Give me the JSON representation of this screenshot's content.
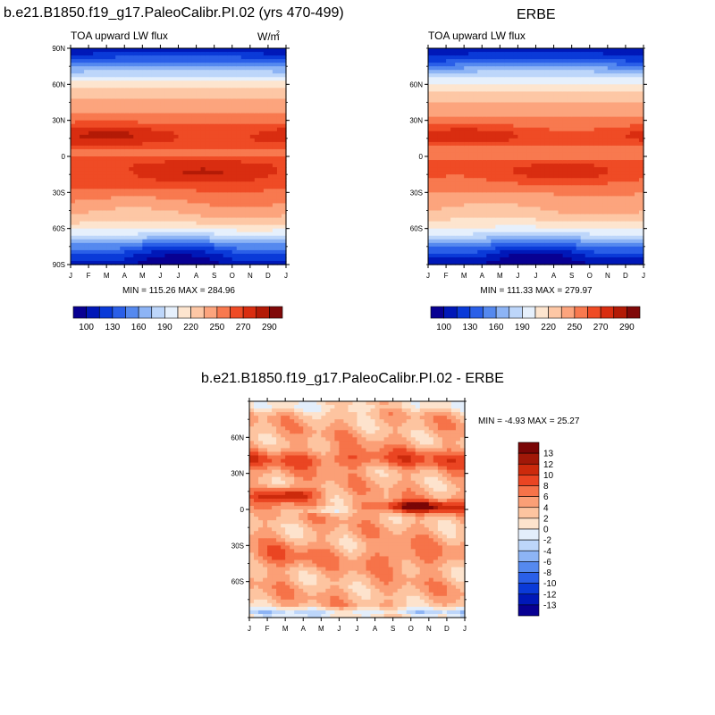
{
  "titles": {
    "model": "b.e21.B1850.f19_g17.PaleoCalibr.PI.02 (yrs 470-499)",
    "obs": "ERBE",
    "diff": "b.e21.B1850.f19_g17.PaleoCalibr.PI.02 - ERBE"
  },
  "chart_data": [
    {
      "id": "model",
      "type": "heatmap",
      "title": "TOA upward LW flux",
      "units": "W/m",
      "units_superscript": "2",
      "x_ticks": [
        "J",
        "F",
        "M",
        "A",
        "M",
        "J",
        "J",
        "A",
        "S",
        "O",
        "N",
        "D",
        "J"
      ],
      "y_ticks": [
        "90N",
        "60N",
        "30N",
        "0",
        "30S",
        "60S",
        "90S"
      ],
      "y_values": [
        90,
        60,
        30,
        0,
        -30,
        -60,
        -90
      ],
      "xlim": [
        1,
        13
      ],
      "ylim": [
        -90,
        90
      ],
      "min": 115.26,
      "max": 284.96,
      "stats_label": "MIN = 115.26 MAX = 284.96",
      "colorbar_labels": [
        "100",
        "130",
        "160",
        "190",
        "220",
        "250",
        "270",
        "290"
      ]
    },
    {
      "id": "obs",
      "type": "heatmap",
      "title": "TOA upward LW flux",
      "x_ticks": [
        "J",
        "F",
        "M",
        "A",
        "M",
        "J",
        "J",
        "A",
        "S",
        "O",
        "N",
        "D",
        "J"
      ],
      "y_ticks": [
        "60N",
        "30N",
        "0",
        "30S",
        "60S"
      ],
      "y_values": [
        60,
        30,
        0,
        -30,
        -60
      ],
      "xlim": [
        1,
        13
      ],
      "ylim": [
        -90,
        90
      ],
      "min": 111.33,
      "max": 279.97,
      "stats_label": "MIN = 111.33 MAX = 279.97",
      "colorbar_labels": [
        "100",
        "130",
        "160",
        "190",
        "220",
        "250",
        "270",
        "290"
      ]
    },
    {
      "id": "diff",
      "type": "heatmap",
      "x_ticks": [
        "J",
        "F",
        "M",
        "A",
        "M",
        "J",
        "J",
        "A",
        "S",
        "O",
        "N",
        "D",
        "J"
      ],
      "y_ticks": [
        "60N",
        "30N",
        "0",
        "30S",
        "60S"
      ],
      "y_values": [
        60,
        30,
        0,
        -30,
        -60
      ],
      "xlim": [
        1,
        13
      ],
      "ylim": [
        -90,
        90
      ],
      "min": -4.93,
      "max": 25.27,
      "stats_label": "MIN =  -4.93 MAX =  25.27",
      "colorbar_labels": [
        "13",
        "12",
        "10",
        "8",
        "6",
        "4",
        "2",
        "0",
        "-2",
        "-4",
        "-6",
        "-8",
        "-10",
        "-12",
        "-13"
      ]
    }
  ],
  "colormaps": {
    "absolute": [
      "#080092",
      "#0018b8",
      "#0a3ad8",
      "#2a5fe8",
      "#5589ef",
      "#8db4f5",
      "#bdd6fa",
      "#e6f0fc",
      "#fde5cf",
      "#fdc7a5",
      "#fca47d",
      "#f8794f",
      "#ef4b25",
      "#d92d10",
      "#b31a06",
      "#800808"
    ],
    "difference": [
      "#080092",
      "#0018b8",
      "#0a3ad8",
      "#2a5fe8",
      "#5589ef",
      "#8db4f5",
      "#bdd6fa",
      "#e3eefb",
      "#fde3cd",
      "#fdc4a0",
      "#fb9f76",
      "#f67349",
      "#ea4522",
      "#cc2a0c",
      "#a11808",
      "#7a0606"
    ]
  }
}
